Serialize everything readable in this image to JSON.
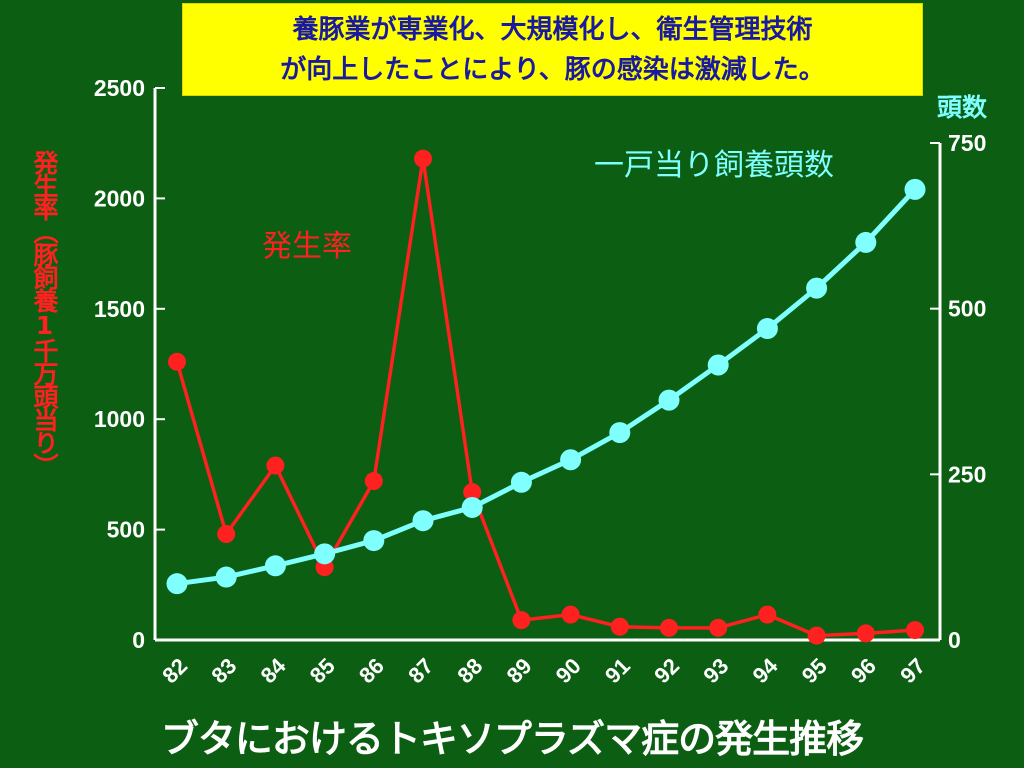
{
  "annotation": {
    "line1": "養豚業が専業化、大規模化し、衛生管理技術",
    "line2": "が向上したことにより、豚の感染は激減した。"
  },
  "title": "ブタにおけるトキソプラズマ症の発生推移",
  "chart_data": {
    "type": "line",
    "categories": [
      "82",
      "83",
      "84",
      "85",
      "86",
      "87",
      "88",
      "89",
      "90",
      "91",
      "92",
      "93",
      "94",
      "95",
      "96",
      "97"
    ],
    "y_left": {
      "label": "発生率（豚飼養1千万頭当り）",
      "range": [
        0,
        2500
      ],
      "ticks": [
        0,
        500,
        1000,
        1500,
        2000,
        2500
      ]
    },
    "y_right": {
      "label": "頭数",
      "range": [
        0,
        750
      ],
      "ticks": [
        0,
        250,
        500,
        750
      ]
    },
    "series": [
      {
        "name": "発生率",
        "axis": "left",
        "color": "#ff2020",
        "values": [
          1260,
          480,
          790,
          330,
          720,
          2180,
          670,
          90,
          115,
          60,
          55,
          55,
          115,
          20,
          30,
          45
        ]
      },
      {
        "name": "一戸当り飼養頭数",
        "axis": "right",
        "color": "#80ffff",
        "values": [
          85,
          95,
          112,
          130,
          150,
          180,
          200,
          238,
          272,
          313,
          362,
          415,
          470,
          531,
          600,
          680
        ]
      }
    ],
    "grid": false
  }
}
